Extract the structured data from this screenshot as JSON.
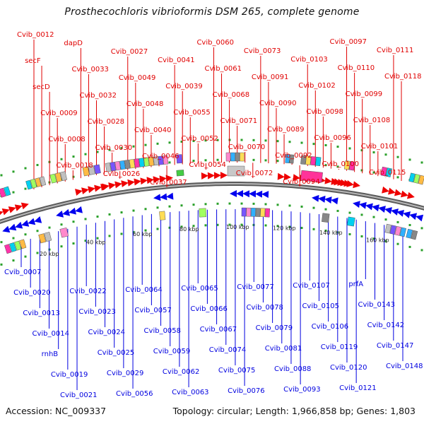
{
  "title": "Prosthecochloris vibrioformis DSM 265, complete genome",
  "footer": {
    "accession": "Accession: NC_009337",
    "summary": "Topology: circular; Length: 1,966,858 bp; Genes: 1,803"
  },
  "colors": {
    "forward_label": "#e00000",
    "reverse_label": "#0000e0",
    "backbone": "#8a8a8a",
    "tick_dot": "#2aa02a"
  },
  "ticks": [
    "20 kbp",
    "40 kbp",
    "60 kbp",
    "80 kbp",
    "100 kbp",
    "120 kbp",
    "140 kbp",
    "160 kbp"
  ],
  "forward_genes": [
    "Cvib_0012",
    "secF",
    "secD",
    "Cvib_0009",
    "Cvib_0008",
    "Cvib_0018",
    "dapD",
    "Cvib_0033",
    "Cvib_0032",
    "Cvib_0028",
    "Cvib_0030",
    "Cvib_0026",
    "Cvib_0027",
    "Cvib_0049",
    "Cvib_0048",
    "Cvib_0040",
    "Cvib_0046",
    "Cvib_0037",
    "Cvib_0041",
    "Cvib_0039",
    "Cvib_0055",
    "Cvib_0052",
    "Cvib_0054",
    "Cvib_0060",
    "Cvib_0061",
    "Cvib_0068",
    "Cvib_0071",
    "Cvib_0070",
    "Cvib_0072",
    "Cvib_0073",
    "Cvib_0091",
    "Cvib_0090",
    "Cvib_0089",
    "Cvib_0092",
    "Cvib_0094",
    "Cvib_0103",
    "Cvib_0102",
    "Cvib_0098",
    "Cvib_0096",
    "Cvib_0100",
    "Cvib_0097",
    "Cvib_0110",
    "Cvib_0099",
    "Cvib_0108",
    "Cvib_0101",
    "Cvib_0115",
    "Cvib_0111",
    "Cvib_0118"
  ],
  "reverse_genes": [
    "Cvib_0007",
    "Cvib_0020",
    "Cvib_0013",
    "Cvib_0014",
    "rnhB",
    "Cvib_0019",
    "Cvib_0021",
    "Cvib_0022",
    "Cvib_0023",
    "Cvib_0024",
    "Cvib_0025",
    "Cvib_0029",
    "Cvib_0056",
    "Cvib_0064",
    "Cvib_0057",
    "Cvib_0058",
    "Cvib_0059",
    "Cvib_0062",
    "Cvib_0063",
    "Cvib_0065",
    "Cvib_0066",
    "Cvib_0067",
    "Cvib_0074",
    "Cvib_0075",
    "Cvib_0076",
    "Cvib_0077",
    "Cvib_0078",
    "Cvib_0079",
    "Cvib_0081",
    "Cvib_0088",
    "Cvib_0093",
    "Cvib_0107",
    "Cvib_0105",
    "Cvib_0106",
    "Cvib_0119",
    "Cvib_0120",
    "Cvib_0121",
    "prfA",
    "Cvib_0143",
    "Cvib_0142",
    "Cvib_0147",
    "Cvib_0148"
  ]
}
